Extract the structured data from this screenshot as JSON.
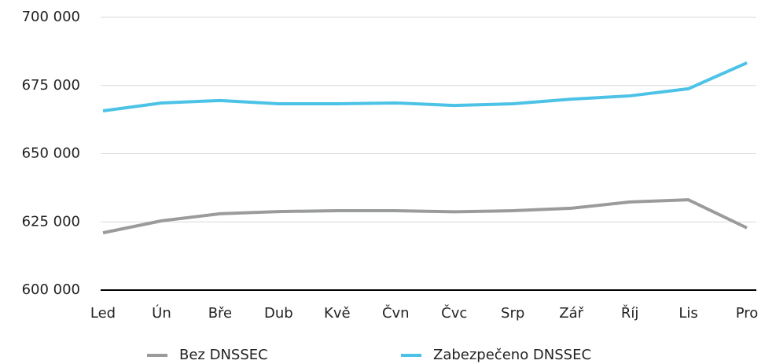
{
  "chart_data": {
    "type": "line",
    "categories": [
      "Led",
      "Ún",
      "Bře",
      "Dub",
      "Kvě",
      "Čvn",
      "Čvc",
      "Srp",
      "Zář",
      "Říj",
      "Lis",
      "Pro"
    ],
    "series": [
      {
        "name": "Bez DNSSEC",
        "color": "#9a9b9d",
        "values": [
          621000,
          625400,
          628000,
          628800,
          629100,
          629100,
          628700,
          629100,
          630000,
          632300,
          633100,
          622800
        ]
      },
      {
        "name": "Zabezpečeno DNSSEC",
        "color": "#4cc3e6",
        "values": [
          665700,
          668600,
          669500,
          668300,
          668300,
          668600,
          667700,
          668300,
          670000,
          671200,
          673800,
          683300
        ]
      }
    ],
    "ylim": [
      600000,
      700000
    ],
    "yticks": [
      {
        "value": 600000,
        "label": "600 000"
      },
      {
        "value": 625000,
        "label": "625 000"
      },
      {
        "value": 650000,
        "label": "650 000"
      },
      {
        "value": 675000,
        "label": "675 000"
      },
      {
        "value": 700000,
        "label": "700 000"
      }
    ],
    "grid": true,
    "legend": "bottom"
  }
}
